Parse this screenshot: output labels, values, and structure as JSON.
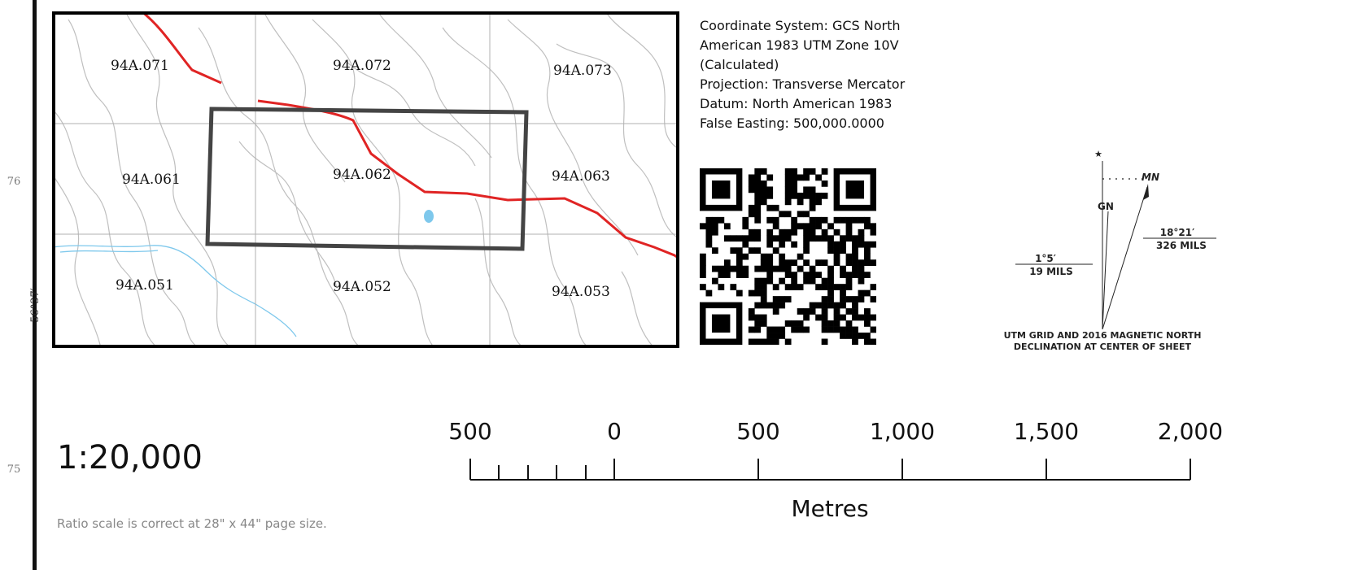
{
  "margin": {
    "tick_76": "76",
    "tick_75": "75",
    "latitude": "56°37′"
  },
  "inset_map": {
    "sheets": {
      "s071": "94A.071",
      "s072": "94A.072",
      "s073": "94A.073",
      "s061": "94A.061",
      "s062": "94A.062",
      "s063": "94A.063",
      "s051": "94A.051",
      "s052": "94A.052",
      "s053": "94A.053"
    },
    "colors": {
      "road": "#e02424",
      "contour": "#bfbfbf",
      "grid": "#b0b0b0",
      "water": "#7ec8ec",
      "frame": "#000000",
      "highlight": "#444444"
    }
  },
  "coordinate_info": {
    "line1": "Coordinate System: GCS North",
    "line2": "American 1983 UTM Zone 10V",
    "line3": "(Calculated)",
    "line4": "Projection: Transverse Mercator",
    "line5": "Datum: North American 1983",
    "line6": "False Easting: 500,000.0000"
  },
  "declination": {
    "star": "★",
    "mn": "MN",
    "gn": "GN",
    "grid_angle": "1°5′",
    "grid_mils": "19 MILS",
    "mag_angle": "18°21′",
    "mag_mils": "326 MILS",
    "caption1": "UTM GRID AND 2016 MAGNETIC NORTH",
    "caption2": "DECLINATION AT CENTER OF SHEET"
  },
  "scale": {
    "ratio": "1:20,000",
    "note": "Ratio scale is correct at 28\" x 44\" page size.",
    "unit": "Metres",
    "labels": {
      "l0": "500",
      "l1": "0",
      "l2": "500",
      "l3": "1,000",
      "l4": "1,500",
      "l5": "2,000"
    }
  }
}
